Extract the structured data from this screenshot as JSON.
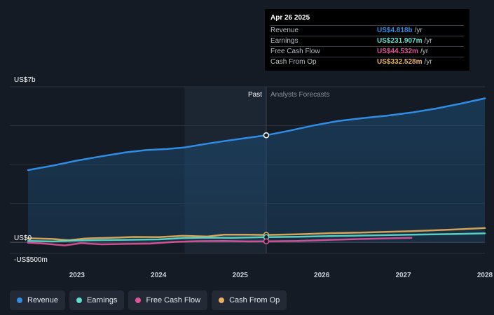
{
  "tooltip": {
    "date": "Apr 26 2025",
    "rows": [
      {
        "label": "Revenue",
        "value": "US$4.818b",
        "unit": "/yr",
        "color": "#2f8de4"
      },
      {
        "label": "Earnings",
        "value": "US$231.907m",
        "unit": "/yr",
        "color": "#5ee0cf"
      },
      {
        "label": "Free Cash Flow",
        "value": "US$44.532m",
        "unit": "/yr",
        "color": "#e0559a"
      },
      {
        "label": "Cash From Op",
        "value": "US$332.528m",
        "unit": "/yr",
        "color": "#e8b15a"
      }
    ]
  },
  "legend": [
    {
      "label": "Revenue",
      "color": "#2f8de4"
    },
    {
      "label": "Earnings",
      "color": "#5ee0cf"
    },
    {
      "label": "Free Cash Flow",
      "color": "#e0559a"
    },
    {
      "label": "Cash From Op",
      "color": "#e8b15a"
    }
  ],
  "chart_data": {
    "type": "line",
    "y_unit_label_top": "US$7b",
    "y_label_zero": "US$0",
    "y_label_bottom": "-US$500m",
    "ylim": [
      -500,
      7000
    ],
    "xlim": [
      2022.4,
      2028.0
    ],
    "x_ticks": [
      "2023",
      "2024",
      "2025",
      "2026",
      "2027",
      "2028"
    ],
    "x_tick_values": [
      2023,
      2024,
      2025,
      2026,
      2027,
      2028
    ],
    "past_label": "Past",
    "forecast_label": "Analysts Forecasts",
    "past_end": 2025.32,
    "highlight_start": 2024.32,
    "grid": true,
    "series": [
      {
        "name": "Revenue",
        "color": "#2f8de4",
        "area": true,
        "x": [
          2022.4,
          2022.7,
          2023.0,
          2023.3,
          2023.6,
          2023.85,
          2024.1,
          2024.32,
          2024.6,
          2024.85,
          2025.1,
          2025.32,
          2025.6,
          2025.9,
          2026.2,
          2026.5,
          2026.8,
          2027.1,
          2027.4,
          2027.7,
          2028.0
        ],
        "y": [
          3250,
          3450,
          3680,
          3870,
          4050,
          4150,
          4200,
          4270,
          4440,
          4580,
          4710,
          4818,
          5020,
          5260,
          5460,
          5590,
          5700,
          5840,
          6020,
          6240,
          6480
        ]
      },
      {
        "name": "Cash From Op",
        "color": "#e8b15a",
        "x": [
          2022.4,
          2022.7,
          2022.9,
          2023.1,
          2023.4,
          2023.7,
          2024.0,
          2024.3,
          2024.6,
          2024.8,
          2025.1,
          2025.32,
          2025.7,
          2026.1,
          2026.6,
          2027.1,
          2027.6,
          2028.0
        ],
        "y": [
          180,
          150,
          90,
          170,
          200,
          240,
          230,
          290,
          260,
          340,
          340,
          332,
          360,
          410,
          450,
          500,
          570,
          640
        ]
      },
      {
        "name": "Earnings",
        "color": "#5ee0cf",
        "x": [
          2022.4,
          2022.7,
          2023.0,
          2023.3,
          2023.6,
          2024.0,
          2024.3,
          2024.6,
          2024.9,
          2025.1,
          2025.32,
          2025.7,
          2026.1,
          2026.6,
          2027.1,
          2027.6,
          2028.0
        ],
        "y": [
          60,
          40,
          80,
          100,
          110,
          130,
          190,
          210,
          200,
          220,
          232,
          250,
          280,
          310,
          340,
          370,
          400
        ]
      },
      {
        "name": "Free Cash Flow",
        "color": "#e0559a",
        "x": [
          2022.4,
          2022.6,
          2022.85,
          2023.05,
          2023.3,
          2023.6,
          2023.9,
          2024.2,
          2024.5,
          2024.8,
          2025.1,
          2025.32,
          2025.7,
          2026.1,
          2026.6,
          2027.1
        ],
        "y": [
          -20,
          -60,
          -140,
          -40,
          -90,
          -70,
          -60,
          20,
          50,
          60,
          40,
          45,
          60,
          110,
          160,
          200
        ]
      }
    ]
  }
}
